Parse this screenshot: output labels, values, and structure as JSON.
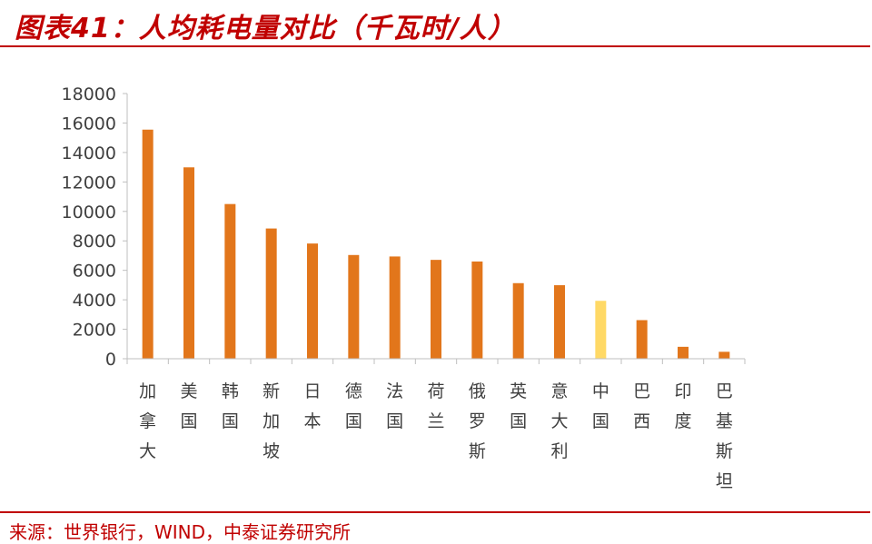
{
  "header": {
    "title": "图表41：人均耗电量对比（千瓦时/人）"
  },
  "footer": {
    "source": "来源：世界银行，WIND，中泰证券研究所"
  },
  "chart_data": {
    "type": "bar",
    "title": "图表41：人均耗电量对比（千瓦时/人）",
    "xlabel": "",
    "ylabel": "",
    "categories": [
      "加拿大",
      "美国",
      "韩国",
      "新加坡",
      "日本",
      "德国",
      "法国",
      "荷兰",
      "俄罗斯",
      "英国",
      "意大利",
      "中国",
      "巴西",
      "印度",
      "巴基斯坦"
    ],
    "values": [
      15550,
      12990,
      10500,
      8840,
      7820,
      7040,
      6940,
      6710,
      6600,
      5130,
      4990,
      3930,
      2620,
      810,
      470
    ],
    "highlight_index": 11,
    "colors": {
      "bar": "#e2761b",
      "highlight": "#ffd966",
      "axis": "#bfbfbf",
      "title": "#c00000"
    },
    "ylim": [
      0,
      18000
    ],
    "yticks": [
      0,
      2000,
      4000,
      6000,
      8000,
      10000,
      12000,
      14000,
      16000,
      18000
    ],
    "grid": false,
    "legend": "none"
  }
}
